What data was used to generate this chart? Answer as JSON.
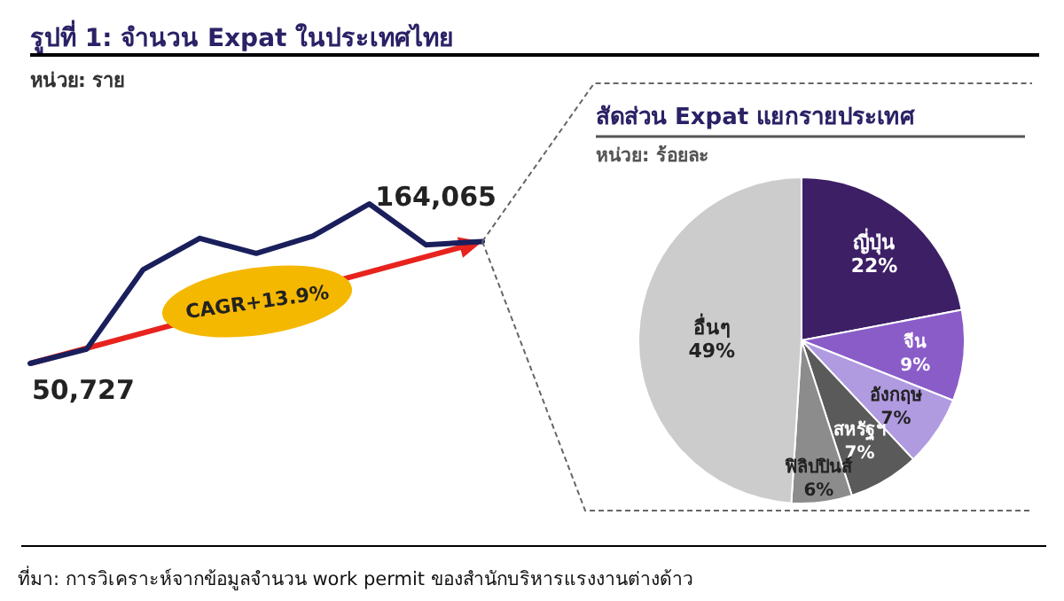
{
  "chart_data": [
    {
      "type": "line",
      "title": "รูปที่ 1: จำนวน Expat ในประเทศไทย",
      "subtitle": "หน่วย: ราย",
      "color": "#1a1f5c",
      "categories": [
        null,
        null,
        null,
        null,
        null,
        null,
        null,
        null,
        null
      ],
      "values": [
        50727,
        64000,
        138000,
        167000,
        153000,
        169000,
        199000,
        161000,
        164065
      ],
      "value_labels": [
        "50,727",
        null,
        null,
        null,
        null,
        null,
        null,
        null,
        "164,065"
      ],
      "annotations": [
        "CAGR+13.9%",
        "ที่มา: การวิเคราะห์จากข้อมูลจำนวน work permit ของสำนักบริหารแรงงานต่างด้าว"
      ]
    },
    {
      "type": "pie",
      "title": "สัดส่วน Expat แยกรายประเทศ",
      "subtitle": "หน่วย: ร้อยละ",
      "value_labels": [
        "22%",
        "9%",
        "7%",
        "7%",
        "6%",
        "49%"
      ],
      "categories": [
        "ญี่ปุ่น",
        "จีน",
        "อังกฤษ",
        "สหรัฐฯ",
        "ฟิลิปปินส์",
        "อื่นๆ"
      ],
      "values": [
        22,
        9,
        7,
        7,
        6,
        49
      ],
      "colors": [
        "#3d1f66",
        "#8a5cc8",
        "#b09ae0",
        "#5a5a5a",
        "#8c8c8c",
        "#cccccc"
      ]
    }
  ]
}
